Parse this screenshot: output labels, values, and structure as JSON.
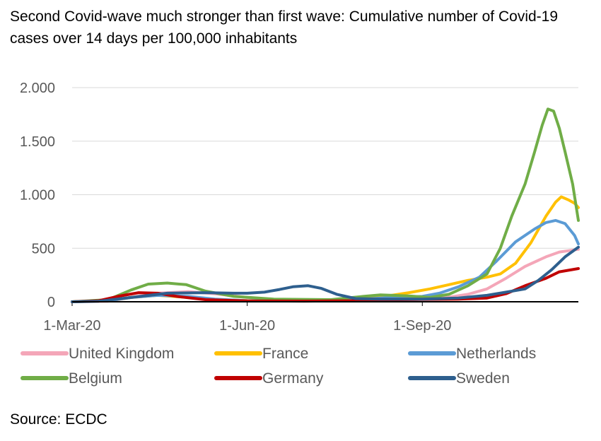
{
  "title": "Second Covid-wave much stronger than first wave: Cumulative number of Covid-19 cases over 14 days per 100,000 inhabitants",
  "source": "Source: ECDC",
  "chart_data": {
    "type": "line",
    "title": "Second Covid-wave much stronger than first wave: Cumulative number of Covid-19 cases over 14 days per 100,000 inhabitants",
    "xlabel": "",
    "ylabel": "",
    "ylim": [
      0,
      2000
    ],
    "y_ticks": [
      0,
      500,
      1000,
      1500,
      2000
    ],
    "y_tick_labels": [
      "0",
      "500",
      "1.000",
      "1.500",
      "2.000"
    ],
    "x_range": [
      "2020-03-01",
      "2020-11-22"
    ],
    "x_ticks": [
      "2020-03-01",
      "2020-06-01",
      "2020-09-01"
    ],
    "x_tick_labels": [
      "1-Mar-20",
      "1-Jun-20",
      "1-Sep-20"
    ],
    "grid": "horizontal",
    "legend_position": "bottom",
    "series": [
      {
        "name": "United Kingdom",
        "color": "#f4a6b8",
        "points": [
          [
            "2020-03-01",
            0
          ],
          [
            "2020-03-20",
            5
          ],
          [
            "2020-04-01",
            40
          ],
          [
            "2020-04-15",
            80
          ],
          [
            "2020-05-01",
            95
          ],
          [
            "2020-05-15",
            75
          ],
          [
            "2020-06-01",
            40
          ],
          [
            "2020-06-15",
            20
          ],
          [
            "2020-07-01",
            12
          ],
          [
            "2020-08-01",
            12
          ],
          [
            "2020-08-20",
            15
          ],
          [
            "2020-09-10",
            30
          ],
          [
            "2020-09-25",
            70
          ],
          [
            "2020-10-05",
            120
          ],
          [
            "2020-10-15",
            220
          ],
          [
            "2020-10-25",
            330
          ],
          [
            "2020-11-05",
            420
          ],
          [
            "2020-11-12",
            465
          ],
          [
            "2020-11-18",
            480
          ],
          [
            "2020-11-22",
            490
          ]
        ]
      },
      {
        "name": "France",
        "color": "#ffc000",
        "points": [
          [
            "2020-03-01",
            0
          ],
          [
            "2020-03-20",
            10
          ],
          [
            "2020-04-01",
            40
          ],
          [
            "2020-04-15",
            60
          ],
          [
            "2020-05-01",
            40
          ],
          [
            "2020-05-15",
            20
          ],
          [
            "2020-06-01",
            12
          ],
          [
            "2020-07-01",
            10
          ],
          [
            "2020-07-20",
            20
          ],
          [
            "2020-08-10",
            45
          ],
          [
            "2020-08-25",
            85
          ],
          [
            "2020-09-05",
            120
          ],
          [
            "2020-09-15",
            160
          ],
          [
            "2020-09-25",
            200
          ],
          [
            "2020-10-05",
            230
          ],
          [
            "2020-10-12",
            260
          ],
          [
            "2020-10-20",
            360
          ],
          [
            "2020-10-28",
            550
          ],
          [
            "2020-11-05",
            800
          ],
          [
            "2020-11-10",
            930
          ],
          [
            "2020-11-13",
            980
          ],
          [
            "2020-11-17",
            950
          ],
          [
            "2020-11-20",
            920
          ],
          [
            "2020-11-22",
            880
          ]
        ]
      },
      {
        "name": "Netherlands",
        "color": "#5b9bd5",
        "points": [
          [
            "2020-03-01",
            0
          ],
          [
            "2020-03-20",
            10
          ],
          [
            "2020-04-01",
            40
          ],
          [
            "2020-04-15",
            60
          ],
          [
            "2020-05-01",
            50
          ],
          [
            "2020-05-15",
            25
          ],
          [
            "2020-06-01",
            10
          ],
          [
            "2020-07-01",
            8
          ],
          [
            "2020-07-25",
            15
          ],
          [
            "2020-08-10",
            35
          ],
          [
            "2020-09-01",
            50
          ],
          [
            "2020-09-10",
            80
          ],
          [
            "2020-09-20",
            140
          ],
          [
            "2020-10-01",
            230
          ],
          [
            "2020-10-10",
            380
          ],
          [
            "2020-10-20",
            560
          ],
          [
            "2020-10-30",
            680
          ],
          [
            "2020-11-05",
            740
          ],
          [
            "2020-11-10",
            760
          ],
          [
            "2020-11-15",
            730
          ],
          [
            "2020-11-20",
            620
          ],
          [
            "2020-11-22",
            540
          ]
        ]
      },
      {
        "name": "Belgium",
        "color": "#70ad47",
        "points": [
          [
            "2020-03-01",
            0
          ],
          [
            "2020-03-20",
            20
          ],
          [
            "2020-04-01",
            110
          ],
          [
            "2020-04-10",
            165
          ],
          [
            "2020-04-20",
            175
          ],
          [
            "2020-04-30",
            160
          ],
          [
            "2020-05-10",
            100
          ],
          [
            "2020-05-25",
            50
          ],
          [
            "2020-06-15",
            25
          ],
          [
            "2020-07-15",
            20
          ],
          [
            "2020-08-01",
            50
          ],
          [
            "2020-08-10",
            65
          ],
          [
            "2020-08-25",
            55
          ],
          [
            "2020-09-05",
            40
          ],
          [
            "2020-09-15",
            70
          ],
          [
            "2020-09-25",
            150
          ],
          [
            "2020-10-05",
            260
          ],
          [
            "2020-10-12",
            500
          ],
          [
            "2020-10-18",
            800
          ],
          [
            "2020-10-25",
            1100
          ],
          [
            "2020-10-30",
            1400
          ],
          [
            "2020-11-03",
            1650
          ],
          [
            "2020-11-06",
            1800
          ],
          [
            "2020-11-09",
            1780
          ],
          [
            "2020-11-12",
            1620
          ],
          [
            "2020-11-15",
            1400
          ],
          [
            "2020-11-19",
            1100
          ],
          [
            "2020-11-22",
            760
          ]
        ]
      },
      {
        "name": "Germany",
        "color": "#c00000",
        "points": [
          [
            "2020-03-01",
            0
          ],
          [
            "2020-03-15",
            10
          ],
          [
            "2020-03-25",
            50
          ],
          [
            "2020-04-05",
            85
          ],
          [
            "2020-04-15",
            80
          ],
          [
            "2020-04-25",
            50
          ],
          [
            "2020-05-10",
            20
          ],
          [
            "2020-06-01",
            8
          ],
          [
            "2020-07-01",
            6
          ],
          [
            "2020-08-01",
            10
          ],
          [
            "2020-08-20",
            20
          ],
          [
            "2020-09-20",
            25
          ],
          [
            "2020-10-05",
            35
          ],
          [
            "2020-10-15",
            75
          ],
          [
            "2020-10-25",
            150
          ],
          [
            "2020-11-05",
            220
          ],
          [
            "2020-11-12",
            280
          ],
          [
            "2020-11-22",
            310
          ]
        ]
      },
      {
        "name": "Sweden",
        "color": "#2e5f8e",
        "points": [
          [
            "2020-03-01",
            0
          ],
          [
            "2020-03-15",
            5
          ],
          [
            "2020-04-01",
            40
          ],
          [
            "2020-04-20",
            80
          ],
          [
            "2020-05-10",
            85
          ],
          [
            "2020-05-25",
            80
          ],
          [
            "2020-06-01",
            80
          ],
          [
            "2020-06-10",
            90
          ],
          [
            "2020-06-18",
            115
          ],
          [
            "2020-06-25",
            140
          ],
          [
            "2020-07-03",
            150
          ],
          [
            "2020-07-10",
            125
          ],
          [
            "2020-07-18",
            70
          ],
          [
            "2020-07-28",
            30
          ],
          [
            "2020-08-10",
            25
          ],
          [
            "2020-09-01",
            25
          ],
          [
            "2020-09-20",
            35
          ],
          [
            "2020-10-05",
            60
          ],
          [
            "2020-10-15",
            90
          ],
          [
            "2020-10-25",
            120
          ],
          [
            "2020-11-01",
            200
          ],
          [
            "2020-11-08",
            300
          ],
          [
            "2020-11-15",
            420
          ],
          [
            "2020-11-22",
            510
          ]
        ]
      }
    ]
  }
}
